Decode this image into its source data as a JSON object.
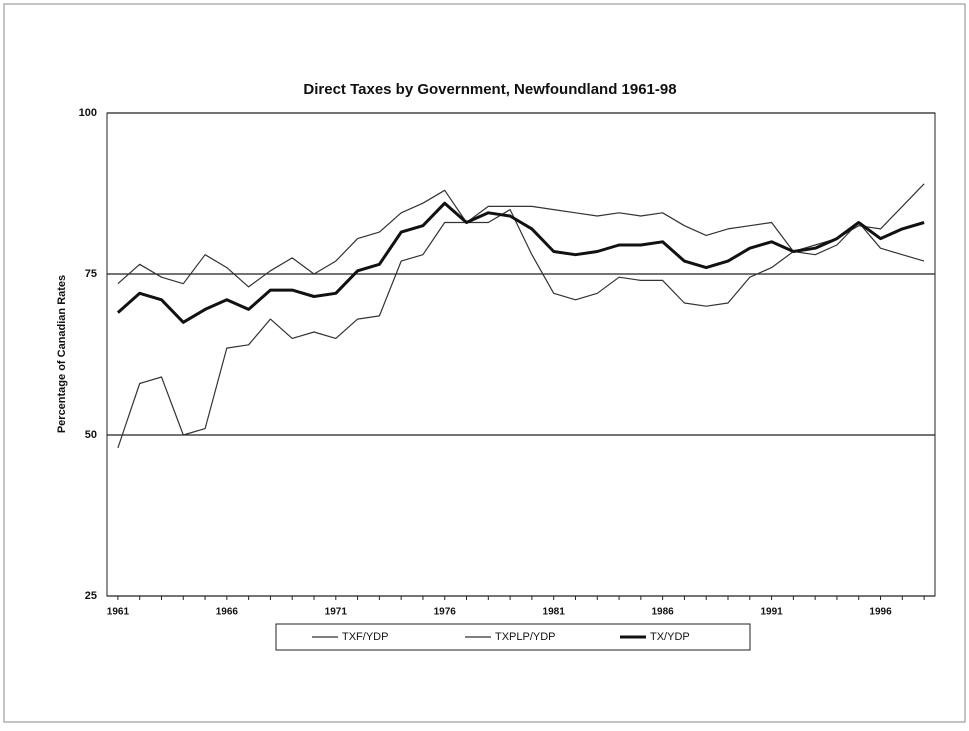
{
  "chart_data": {
    "type": "line",
    "title": "Direct Taxes by Government, Newfoundland 1961-98",
    "y_label": "Percentage of Canadian Rates",
    "categories": [
      "1961",
      null,
      null,
      null,
      null,
      "1966",
      null,
      null,
      null,
      null,
      "1971",
      null,
      null,
      null,
      null,
      "1976",
      null,
      null,
      null,
      null,
      "1981",
      null,
      null,
      null,
      null,
      "1986",
      null,
      null,
      null,
      null,
      "1991",
      null,
      null,
      null,
      null,
      "1996",
      null,
      null
    ],
    "ylim": [
      25,
      100
    ],
    "yticks": [
      25,
      50,
      75,
      100
    ],
    "grid": true,
    "legend": "bottom",
    "series": [
      {
        "name": "TXF/YDP",
        "color": "#333333",
        "width": 1.2,
        "values": [
          48,
          58,
          59,
          50,
          51,
          63.5,
          64,
          68,
          65,
          66,
          65,
          68,
          68.5,
          77,
          78,
          83,
          83,
          83,
          85,
          78,
          72,
          71,
          72,
          74.5,
          74,
          74,
          70.5,
          70,
          70.5,
          74.5,
          76,
          78.5,
          79.5,
          80.5,
          82.5,
          82,
          85.5,
          89
        ]
      },
      {
        "name": "TXPLP/YDP",
        "color": "#333333",
        "width": 1.2,
        "values": [
          73.5,
          76.5,
          74.5,
          73.5,
          78,
          76,
          73,
          75.5,
          77.5,
          75,
          77,
          80.5,
          81.5,
          84.5,
          86,
          88,
          83,
          85.5,
          85.5,
          85.5,
          85,
          84.5,
          84,
          84.5,
          84,
          84.5,
          82.5,
          81,
          82,
          82.5,
          83,
          78.5,
          78,
          79.5,
          83,
          79,
          78,
          77
        ]
      },
      {
        "name": "TX/YDP",
        "color": "#111111",
        "width": 3,
        "values": [
          69,
          72,
          71,
          67.5,
          69.5,
          71,
          69.5,
          72.5,
          72.5,
          71.5,
          72,
          75.5,
          76.5,
          81.5,
          82.5,
          86,
          83,
          84.5,
          84,
          82,
          78.5,
          78,
          78.5,
          79.5,
          79.5,
          80,
          77,
          76,
          77,
          79,
          80,
          78.5,
          79,
          80.5,
          83,
          80.5,
          82,
          83
        ]
      }
    ]
  }
}
